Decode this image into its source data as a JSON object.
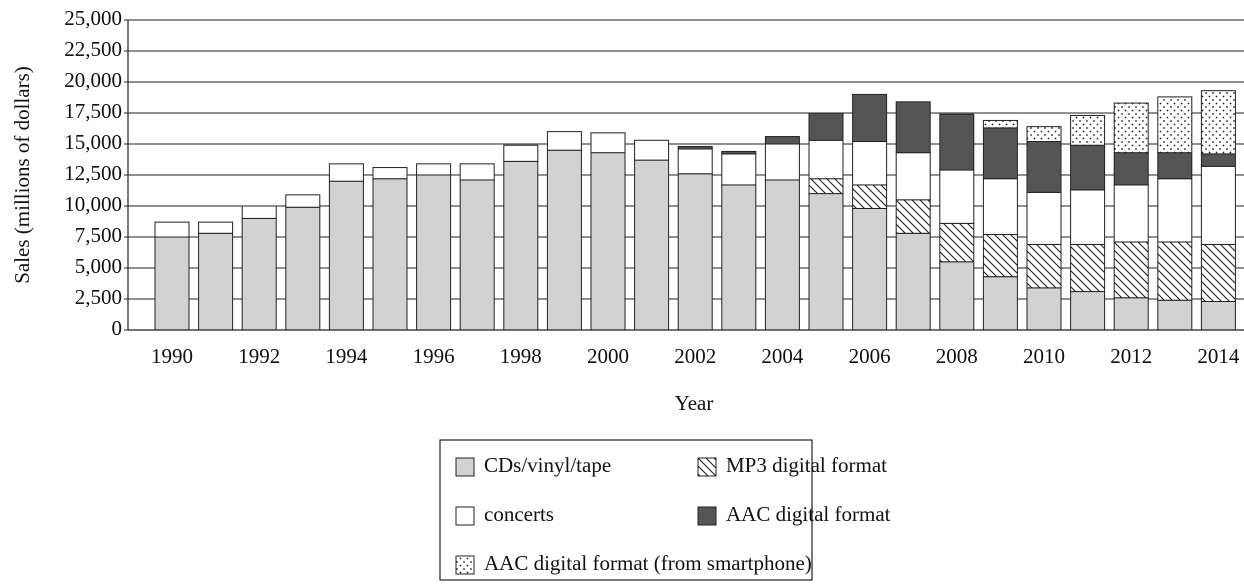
{
  "chart_data": {
    "type": "stacked_bar",
    "x_label": "Year",
    "y_label": "Sales (millions of dollars)",
    "categories": [
      "1990",
      null,
      "1992",
      null,
      "1994",
      null,
      "1996",
      null,
      "1998",
      null,
      "2000",
      null,
      "2002",
      null,
      "2004",
      null,
      "2006",
      null,
      "2008",
      null,
      "2010",
      null,
      "2012",
      null,
      "2014"
    ],
    "series": [
      {
        "name": "CDs/vinyl/tape",
        "color": "#d2d2d2",
        "pattern": "solid",
        "values": [
          7500,
          7800,
          9000,
          9900,
          12000,
          12200,
          12500,
          12100,
          13600,
          14500,
          14300,
          13700,
          12600,
          11700,
          12100,
          11000,
          9800,
          7800,
          5500,
          4300,
          3400,
          3100,
          2600,
          2400,
          2300
        ]
      },
      {
        "name": "MP3 digital format",
        "color": "#ffffff",
        "pattern": "hatch",
        "values": [
          null,
          null,
          null,
          null,
          null,
          null,
          null,
          null,
          null,
          null,
          null,
          null,
          null,
          null,
          null,
          1200,
          1900,
          2700,
          3100,
          3400,
          3500,
          3800,
          4500,
          4700,
          4600
        ]
      },
      {
        "name": "concerts",
        "color": "#ffffff",
        "pattern": "solid",
        "values": [
          1200,
          900,
          1000,
          1000,
          1400,
          900,
          900,
          1300,
          1300,
          1500,
          1600,
          1600,
          2000,
          2500,
          2900,
          3100,
          3500,
          3800,
          4300,
          4500,
          4200,
          4400,
          4600,
          5100,
          6300
        ]
      },
      {
        "name": "AAC digital format",
        "color": "#555555",
        "pattern": "solid",
        "values": [
          null,
          null,
          null,
          null,
          null,
          null,
          null,
          null,
          null,
          null,
          null,
          null,
          200,
          200,
          600,
          2200,
          3800,
          4100,
          4500,
          4100,
          4100,
          3600,
          2600,
          2100,
          1000
        ]
      },
      {
        "name": "AAC digital format (from smartphone)",
        "color": "#ffffff",
        "pattern": "dots",
        "values": [
          null,
          null,
          null,
          null,
          null,
          null,
          null,
          null,
          null,
          null,
          null,
          null,
          null,
          null,
          null,
          null,
          null,
          null,
          null,
          600,
          1200,
          2400,
          4000,
          4500,
          5100
        ]
      }
    ],
    "ylim": [
      0,
      25000
    ],
    "yticks": [
      0,
      {
        "value": 2500,
        "label": "2,500"
      },
      {
        "value": 5000,
        "label": "5,000"
      },
      {
        "value": 7500,
        "label": "7,500"
      },
      {
        "value": 10000,
        "label": "10,000"
      },
      {
        "value": 12500,
        "label": "12,500"
      },
      {
        "value": 15000,
        "label": "15,000"
      },
      {
        "value": 17500,
        "label": "17,500"
      },
      {
        "value": 20000,
        "label": "20,000"
      },
      {
        "value": 22500,
        "label": "22,500"
      },
      {
        "value": 25000,
        "label": "25,000"
      }
    ],
    "grid": true
  }
}
